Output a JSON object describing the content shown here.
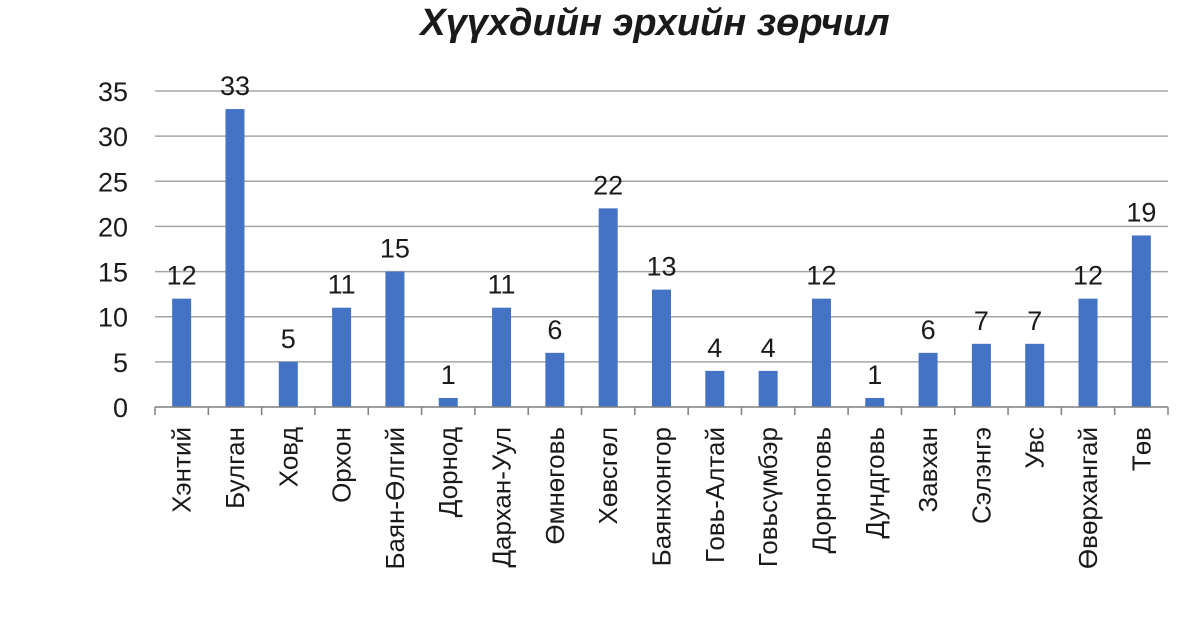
{
  "chart_data": {
    "type": "bar",
    "title": "Хүүхдийн эрхийн зөрчил",
    "xlabel": "",
    "ylabel": "",
    "ylim": [
      0,
      35
    ],
    "yticks": [
      0,
      5,
      10,
      15,
      20,
      25,
      30,
      35
    ],
    "grid": true,
    "legend": "none",
    "bar_color": "#4472c4",
    "categories": [
      "Хэнтий",
      "Булган",
      "Ховд",
      "Орхон",
      "Баян-Өлгий",
      "Дорнод",
      "Дархан-Уул",
      "Өмнөговь",
      "Хөвсгөл",
      "Баянхонгор",
      "Говь-Алтай",
      "Говьсүмбэр",
      "Дорноговь",
      "Дундговь",
      "Завхан",
      "Сэлэнгэ",
      "Увс",
      "Өвөрхангай",
      "Төв"
    ],
    "values": [
      12,
      33,
      5,
      11,
      15,
      1,
      11,
      6,
      22,
      13,
      4,
      4,
      12,
      1,
      6,
      7,
      7,
      12,
      19
    ]
  }
}
